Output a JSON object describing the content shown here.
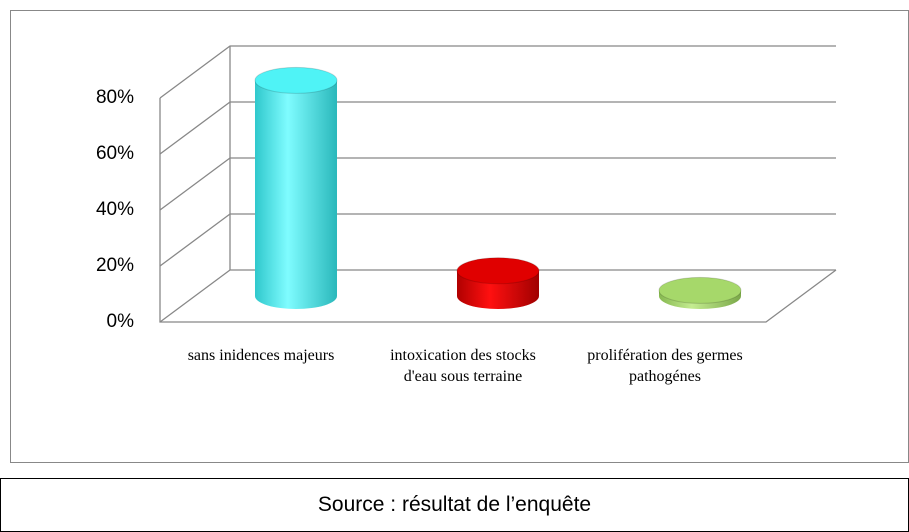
{
  "chart_data": {
    "type": "bar3d",
    "categories": [
      "sans inidences majeurs",
      "intoxication des stocks d'eau sous terraine",
      "prolifération des germes pathogénes"
    ],
    "values": [
      77,
      9,
      2
    ],
    "colors": [
      "#4ff3f6",
      "#e00000",
      "#a6d86a"
    ],
    "ylim": [
      0,
      80
    ],
    "yticks": [
      {
        "value": 0,
        "label": "0%"
      },
      {
        "value": 20,
        "label": "20%"
      },
      {
        "value": 40,
        "label": "40%"
      },
      {
        "value": 60,
        "label": "60%"
      },
      {
        "value": 80,
        "label": "80%"
      }
    ],
    "grid": true
  },
  "source": "Source : résultat de l’enquête"
}
